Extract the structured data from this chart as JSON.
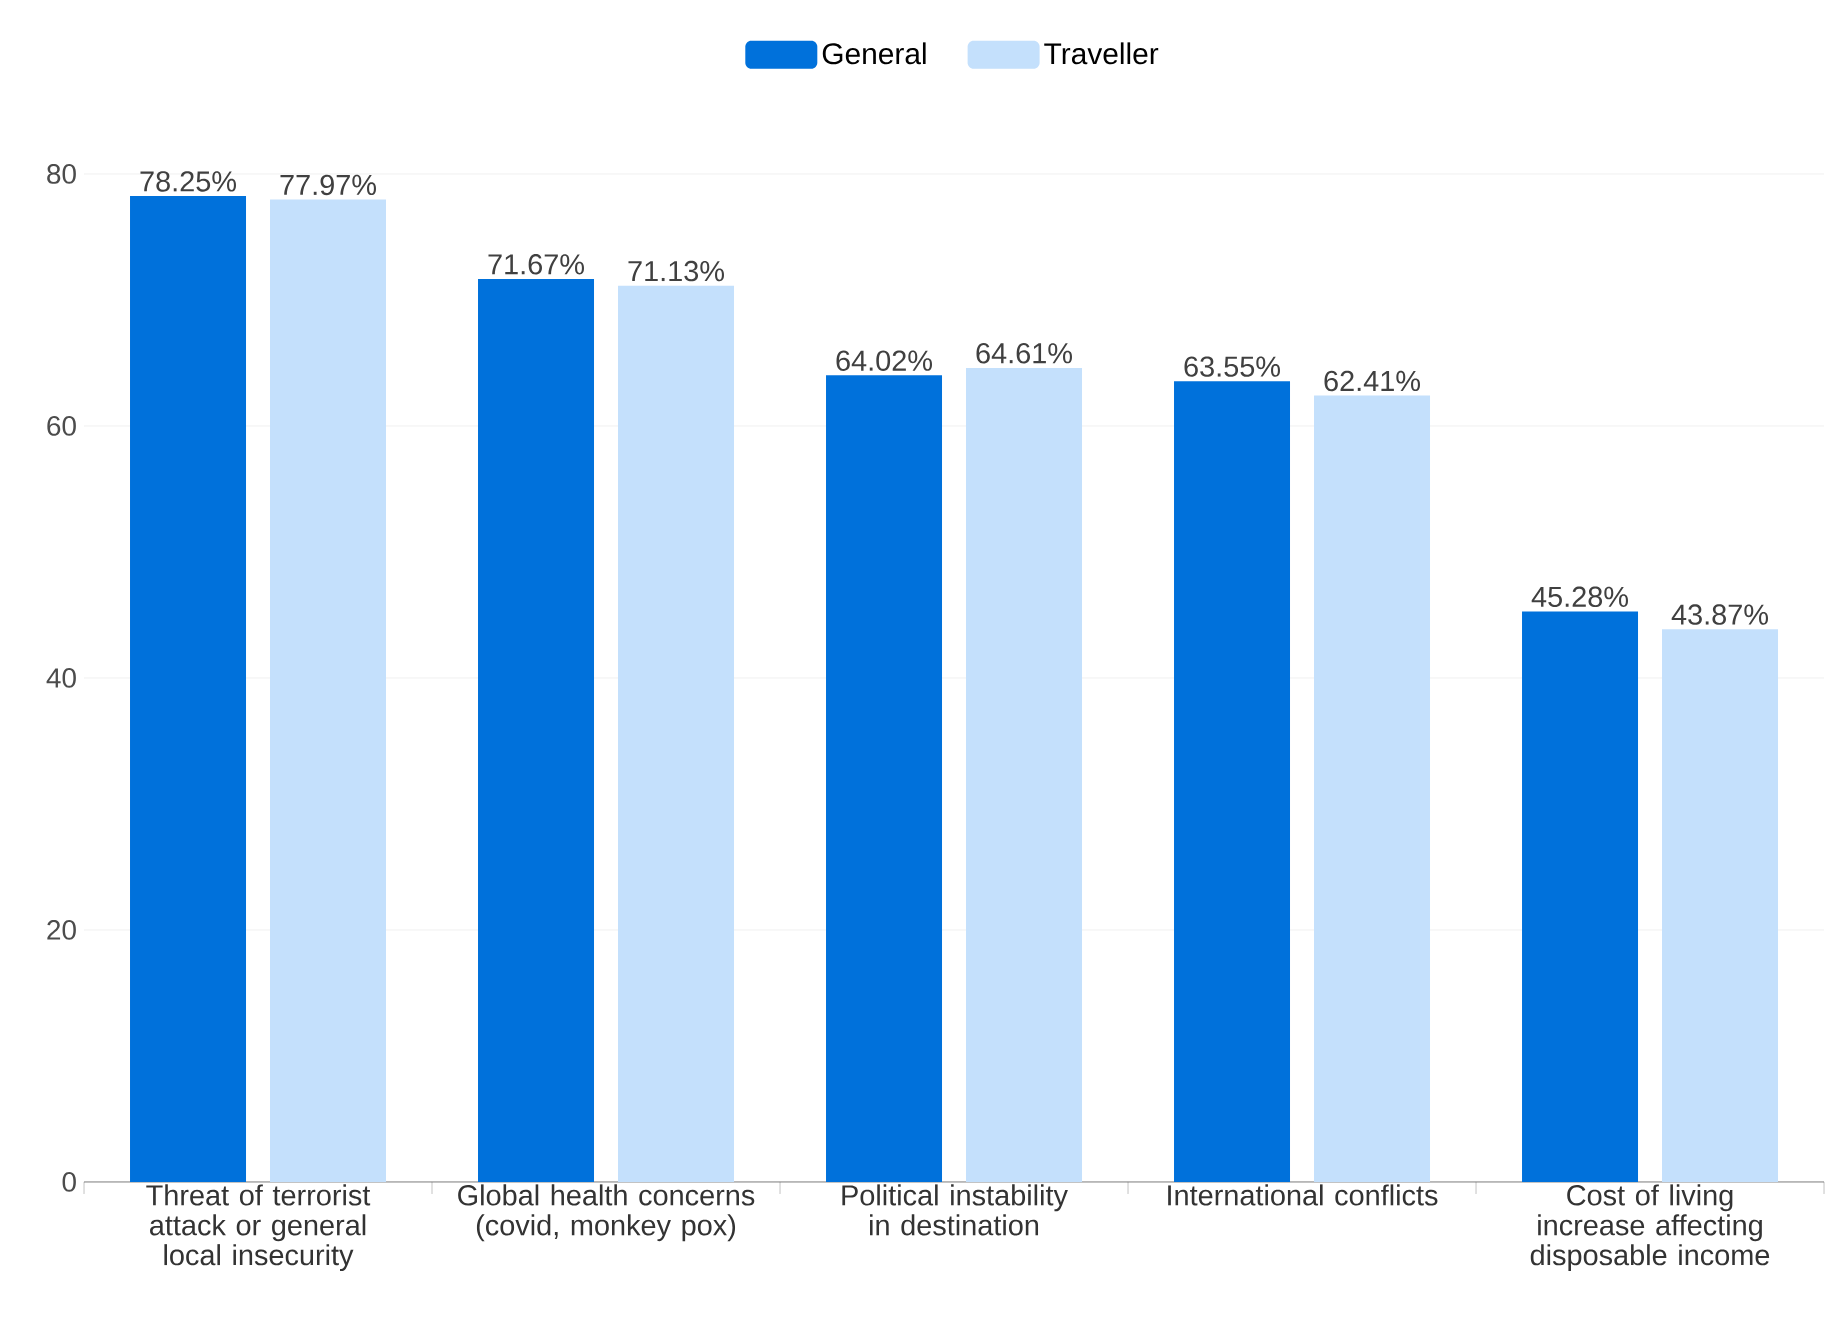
{
  "chart_data": {
    "type": "bar",
    "categories": [
      "Threat of terrorist attack or general local insecurity",
      "Global health concerns (covid, monkey pox)",
      "Political instability in destination",
      "International conflicts",
      "Cost of living increase affecting disposable income"
    ],
    "series": [
      {
        "name": "General",
        "color": "#0071db",
        "values": [
          78.25,
          71.67,
          64.02,
          63.55,
          45.28
        ],
        "value_labels": [
          "78.25%",
          "71.67%",
          "64.02%",
          "63.55%",
          "45.28%"
        ]
      },
      {
        "name": "Traveller",
        "color": "#c4e0fc",
        "values": [
          77.97,
          71.13,
          64.61,
          62.41,
          43.87
        ],
        "value_labels": [
          "77.97%",
          "71.13%",
          "64.61%",
          "62.41%",
          "43.87%"
        ]
      }
    ],
    "ylim": [
      0,
      80
    ],
    "yticks": [
      0,
      20,
      40,
      60,
      80
    ],
    "grid": "y",
    "legend": "top"
  }
}
